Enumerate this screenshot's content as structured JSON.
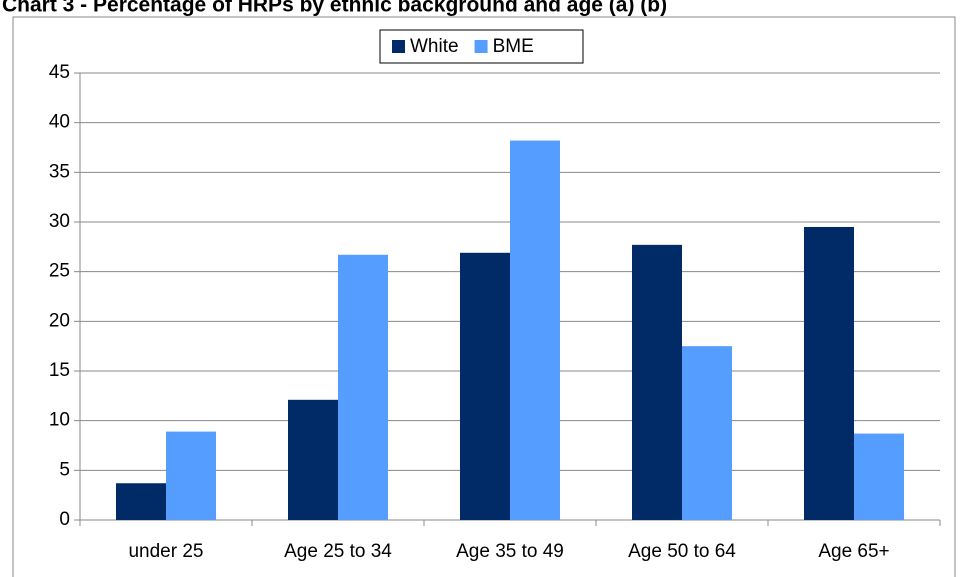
{
  "chart_data": {
    "type": "bar",
    "title": "Chart 3 - Percentage of HRPs by ethnic background and age (a) (b)",
    "categories": [
      "under 25",
      "Age 25 to 34",
      "Age 35 to 49",
      "Age 50 to 64",
      "Age 65+"
    ],
    "series": [
      {
        "name": "White",
        "color": "#002b66",
        "values": [
          3.7,
          12.1,
          26.9,
          27.7,
          29.5
        ]
      },
      {
        "name": "BME",
        "color": "#559dff",
        "values": [
          8.9,
          26.7,
          38.2,
          17.5,
          8.7
        ]
      }
    ],
    "ylim": [
      0,
      45
    ],
    "yticks": [
      0,
      5,
      10,
      15,
      20,
      25,
      30,
      35,
      40,
      45
    ],
    "grid": true,
    "legend": "top"
  }
}
